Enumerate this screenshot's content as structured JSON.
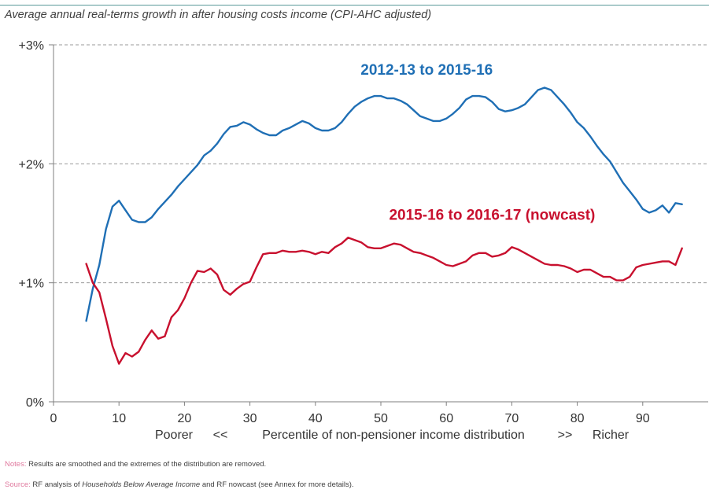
{
  "chart_data": {
    "type": "line",
    "subtitle": "Average annual real-terms growth in after housing costs income (CPI-AHC adjusted)",
    "xlim": [
      0,
      100
    ],
    "ylim": [
      0,
      3
    ],
    "x_ticks": [
      0,
      10,
      20,
      30,
      40,
      50,
      60,
      70,
      80,
      90
    ],
    "x_tick_labels": [
      "0",
      "10",
      "20",
      "30",
      "40",
      "50",
      "60",
      "70",
      "80",
      "90"
    ],
    "y_ticks": [
      0,
      1,
      2,
      3
    ],
    "y_tick_labels": [
      "0%",
      "+1%",
      "+2%",
      "+3%"
    ],
    "grid": "horizontal dashed",
    "xlabel": {
      "poorer": "Poorer",
      "left_arrow": "<<",
      "center": "Percentile of non-pensioner income distribution",
      "right_arrow": ">>",
      "richer": "Richer"
    },
    "series": [
      {
        "name": "2012-13 to 2015-16",
        "color": "#1f6fb5",
        "label_pos": [
          57,
          2.75
        ],
        "points": [
          [
            5,
            0.68
          ],
          [
            6,
            0.95
          ],
          [
            7,
            1.15
          ],
          [
            8,
            1.45
          ],
          [
            9,
            1.64
          ],
          [
            10,
            1.69
          ],
          [
            11,
            1.61
          ],
          [
            12,
            1.53
          ],
          [
            13,
            1.51
          ],
          [
            14,
            1.51
          ],
          [
            15,
            1.55
          ],
          [
            16,
            1.62
          ],
          [
            17,
            1.68
          ],
          [
            18,
            1.74
          ],
          [
            19,
            1.81
          ],
          [
            20,
            1.87
          ],
          [
            21,
            1.93
          ],
          [
            22,
            1.99
          ],
          [
            23,
            2.07
          ],
          [
            24,
            2.11
          ],
          [
            25,
            2.17
          ],
          [
            26,
            2.25
          ],
          [
            27,
            2.31
          ],
          [
            28,
            2.32
          ],
          [
            29,
            2.35
          ],
          [
            30,
            2.33
          ],
          [
            31,
            2.29
          ],
          [
            32,
            2.26
          ],
          [
            33,
            2.24
          ],
          [
            34,
            2.24
          ],
          [
            35,
            2.28
          ],
          [
            36,
            2.3
          ],
          [
            37,
            2.33
          ],
          [
            38,
            2.36
          ],
          [
            39,
            2.34
          ],
          [
            40,
            2.3
          ],
          [
            41,
            2.28
          ],
          [
            42,
            2.28
          ],
          [
            43,
            2.3
          ],
          [
            44,
            2.35
          ],
          [
            45,
            2.42
          ],
          [
            46,
            2.48
          ],
          [
            47,
            2.52
          ],
          [
            48,
            2.55
          ],
          [
            49,
            2.57
          ],
          [
            50,
            2.57
          ],
          [
            51,
            2.55
          ],
          [
            52,
            2.55
          ],
          [
            53,
            2.53
          ],
          [
            54,
            2.5
          ],
          [
            55,
            2.45
          ],
          [
            56,
            2.4
          ],
          [
            57,
            2.38
          ],
          [
            58,
            2.36
          ],
          [
            59,
            2.36
          ],
          [
            60,
            2.38
          ],
          [
            61,
            2.42
          ],
          [
            62,
            2.47
          ],
          [
            63,
            2.54
          ],
          [
            64,
            2.57
          ],
          [
            65,
            2.57
          ],
          [
            66,
            2.56
          ],
          [
            67,
            2.52
          ],
          [
            68,
            2.46
          ],
          [
            69,
            2.44
          ],
          [
            70,
            2.45
          ],
          [
            71,
            2.47
          ],
          [
            72,
            2.5
          ],
          [
            73,
            2.56
          ],
          [
            74,
            2.62
          ],
          [
            75,
            2.64
          ],
          [
            76,
            2.62
          ],
          [
            77,
            2.56
          ],
          [
            78,
            2.5
          ],
          [
            79,
            2.43
          ],
          [
            80,
            2.35
          ],
          [
            81,
            2.3
          ],
          [
            82,
            2.23
          ],
          [
            83,
            2.15
          ],
          [
            84,
            2.08
          ],
          [
            85,
            2.02
          ],
          [
            86,
            1.93
          ],
          [
            87,
            1.84
          ],
          [
            88,
            1.77
          ],
          [
            89,
            1.7
          ],
          [
            90,
            1.62
          ],
          [
            91,
            1.59
          ],
          [
            92,
            1.61
          ],
          [
            93,
            1.65
          ],
          [
            94,
            1.59
          ],
          [
            95,
            1.67
          ],
          [
            96,
            1.66
          ]
        ]
      },
      {
        "name": "2015-16 to 2016-17 (nowcast)",
        "color": "#c8102e",
        "label_pos": [
          67,
          1.53
        ],
        "points": [
          [
            5,
            1.16
          ],
          [
            6,
            1.0
          ],
          [
            7,
            0.92
          ],
          [
            8,
            0.7
          ],
          [
            9,
            0.47
          ],
          [
            10,
            0.32
          ],
          [
            11,
            0.41
          ],
          [
            12,
            0.38
          ],
          [
            13,
            0.42
          ],
          [
            14,
            0.52
          ],
          [
            15,
            0.6
          ],
          [
            16,
            0.53
          ],
          [
            17,
            0.55
          ],
          [
            18,
            0.71
          ],
          [
            19,
            0.77
          ],
          [
            20,
            0.87
          ],
          [
            21,
            1.0
          ],
          [
            22,
            1.1
          ],
          [
            23,
            1.09
          ],
          [
            24,
            1.12
          ],
          [
            25,
            1.07
          ],
          [
            26,
            0.94
          ],
          [
            27,
            0.9
          ],
          [
            28,
            0.95
          ],
          [
            29,
            0.99
          ],
          [
            30,
            1.01
          ],
          [
            31,
            1.13
          ],
          [
            32,
            1.24
          ],
          [
            33,
            1.25
          ],
          [
            34,
            1.25
          ],
          [
            35,
            1.27
          ],
          [
            36,
            1.26
          ],
          [
            37,
            1.26
          ],
          [
            38,
            1.27
          ],
          [
            39,
            1.26
          ],
          [
            40,
            1.24
          ],
          [
            41,
            1.26
          ],
          [
            42,
            1.25
          ],
          [
            43,
            1.3
          ],
          [
            44,
            1.33
          ],
          [
            45,
            1.38
          ],
          [
            46,
            1.36
          ],
          [
            47,
            1.34
          ],
          [
            48,
            1.3
          ],
          [
            49,
            1.29
          ],
          [
            50,
            1.29
          ],
          [
            51,
            1.31
          ],
          [
            52,
            1.33
          ],
          [
            53,
            1.32
          ],
          [
            54,
            1.29
          ],
          [
            55,
            1.26
          ],
          [
            56,
            1.25
          ],
          [
            57,
            1.23
          ],
          [
            58,
            1.21
          ],
          [
            59,
            1.18
          ],
          [
            60,
            1.15
          ],
          [
            61,
            1.14
          ],
          [
            62,
            1.16
          ],
          [
            63,
            1.18
          ],
          [
            64,
            1.23
          ],
          [
            65,
            1.25
          ],
          [
            66,
            1.25
          ],
          [
            67,
            1.22
          ],
          [
            68,
            1.23
          ],
          [
            69,
            1.25
          ],
          [
            70,
            1.3
          ],
          [
            71,
            1.28
          ],
          [
            72,
            1.25
          ],
          [
            73,
            1.22
          ],
          [
            74,
            1.19
          ],
          [
            75,
            1.16
          ],
          [
            76,
            1.15
          ],
          [
            77,
            1.15
          ],
          [
            78,
            1.14
          ],
          [
            79,
            1.12
          ],
          [
            80,
            1.09
          ],
          [
            81,
            1.11
          ],
          [
            82,
            1.11
          ],
          [
            83,
            1.08
          ],
          [
            84,
            1.05
          ],
          [
            85,
            1.05
          ],
          [
            86,
            1.02
          ],
          [
            87,
            1.02
          ],
          [
            88,
            1.05
          ],
          [
            89,
            1.13
          ],
          [
            90,
            1.15
          ],
          [
            91,
            1.16
          ],
          [
            92,
            1.17
          ],
          [
            93,
            1.18
          ],
          [
            94,
            1.18
          ],
          [
            95,
            1.15
          ],
          [
            96,
            1.29
          ]
        ]
      }
    ]
  },
  "footer": {
    "notes_prefix": "Notes:",
    "notes_text": " Results are smoothed and the extremes of the distribution are removed.",
    "source_prefix": "Source:",
    "source_pre": " RF analysis of ",
    "source_italic": "Households Below Average Income",
    "source_post": " and RF nowcast (see Annex for more details)."
  }
}
